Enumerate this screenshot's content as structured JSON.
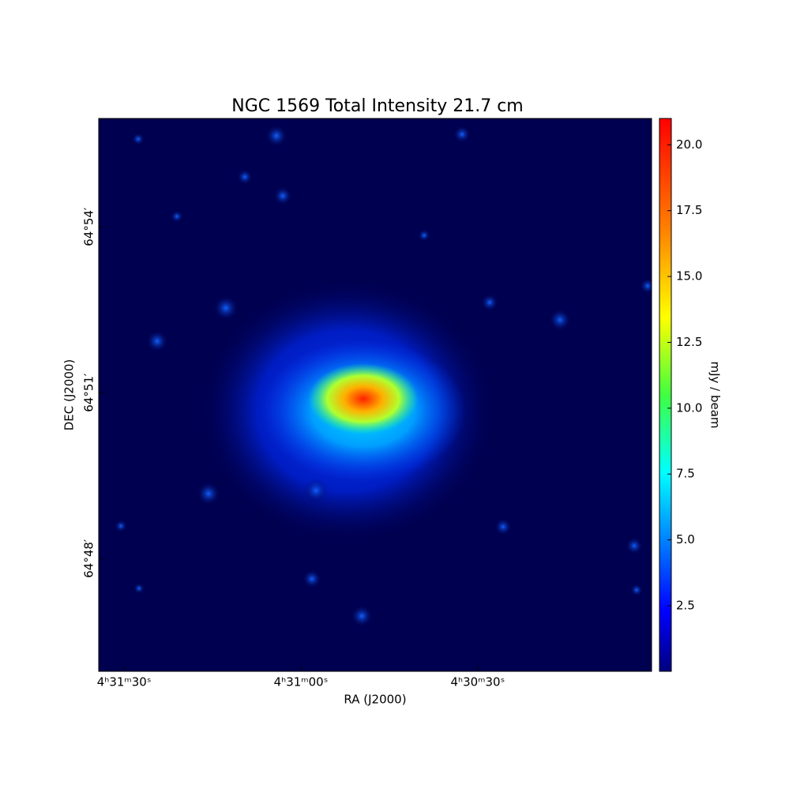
{
  "chart_data": {
    "type": "image",
    "title": "NGC 1569 Total Intensity 21.7 cm",
    "xlabel": "RA (J2000)",
    "ylabel": "DEC (J2000)",
    "colorbar_label": "mJy / beam",
    "xlim": [
      16294.3,
      16200.5
    ],
    "xticks": [
      {
        "value": 16290,
        "label": "4ʰ31ᵐ30ˢ"
      },
      {
        "value": 16260,
        "label": "4ʰ31ᵐ00ˢ"
      },
      {
        "value": 16230,
        "label": "4ʰ30ᵐ30ˢ"
      }
    ],
    "ylim": [
      3885.96,
      3895.96
    ],
    "yticks": [
      {
        "value": 3894,
        "label": "64°54′"
      },
      {
        "value": 3891,
        "label": "64°51′"
      },
      {
        "value": 3888,
        "label": "64°48′"
      }
    ],
    "clim": [
      0.01,
      21.0
    ],
    "cticks": [
      2.5,
      {
        "value": 5,
        "label": "5.0"
      },
      7.5,
      {
        "value": 10,
        "label": "10.0"
      },
      12.5,
      {
        "value": 15,
        "label": "15.0"
      },
      17.5,
      {
        "value": 20,
        "label": "20.0"
      }
    ]
  }
}
